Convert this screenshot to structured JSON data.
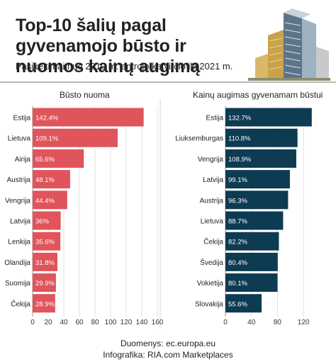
{
  "header": {
    "title": "Top-10 šalių pagal gyvenamojo būsto ir nuomos kainų augimą",
    "subtitle": "Pasikeitimai nuo 2010 m. antrojo ketvirčio iki 2021 m."
  },
  "footer": {
    "source": "Duomenys: ec.europa.eu",
    "credit": "Infografika: RIA.com Marketplaces"
  },
  "colors": {
    "rent": "#e0545b",
    "housing": "#0d3b52"
  },
  "chart_data": [
    {
      "type": "bar",
      "orientation": "horizontal",
      "title": "Būsto nuoma",
      "categories": [
        "Estija",
        "Lietuva",
        "Airija",
        "Austrija",
        "Vengrija",
        "Latvija",
        "Lenkija",
        "Olandija",
        "Suomija",
        "Čekija"
      ],
      "values": [
        142.4,
        109.1,
        65.6,
        48.1,
        44.4,
        36,
        35.6,
        31.8,
        29.9,
        28.9
      ],
      "labels": [
        "142.4%",
        "109.1%",
        "65.6%",
        "48.1%",
        "44.4%",
        "36%",
        "35.6%",
        "31.8%",
        "29.9%",
        "28.9%"
      ],
      "xlim": [
        0,
        160
      ],
      "xticks": [
        0,
        20,
        40,
        60,
        80,
        100,
        120,
        140,
        160
      ],
      "grid": true
    },
    {
      "type": "bar",
      "orientation": "horizontal",
      "title": "Kainų augimas gyvenamam būstui",
      "categories": [
        "Estija",
        "Liuksemburgas",
        "Vengrija",
        "Latvija",
        "Austrija",
        "Lietuva",
        "Čekija",
        "Švedija",
        "Vokietija",
        "Slovakija"
      ],
      "values": [
        132.7,
        110.8,
        108.9,
        99.1,
        96.3,
        88.7,
        82.2,
        80.4,
        80.1,
        55.6
      ],
      "labels": [
        "132.7%",
        "110.8%",
        "108.9%",
        "99.1%",
        "96.3%",
        "88.7%",
        "82.2%",
        "80.4%",
        "80.1%",
        "55.6%"
      ],
      "xlim": [
        0,
        140
      ],
      "xticks": [
        0,
        40,
        80,
        120
      ],
      "grid": true
    }
  ]
}
